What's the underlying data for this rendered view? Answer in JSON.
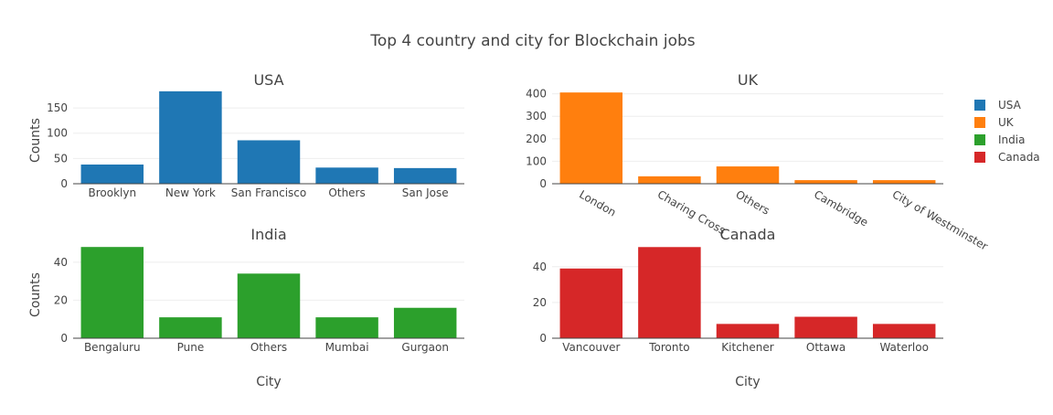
{
  "title": "Top 4 country and city for Blockchain jobs",
  "colors": {
    "USA": "#1f77b4",
    "UK": "#ff7f0e",
    "India": "#2ca02c",
    "Canada": "#d62728"
  },
  "legend": {
    "placement": "top-right",
    "items": [
      {
        "label": "USA",
        "color": "#1f77b4"
      },
      {
        "label": "UK",
        "color": "#ff7f0e"
      },
      {
        "label": "India",
        "color": "#2ca02c"
      },
      {
        "label": "Canada",
        "color": "#d62728"
      }
    ]
  },
  "chart_data": [
    {
      "type": "bar",
      "title": "USA",
      "series_name": "USA",
      "categories": [
        "Brooklyn",
        "New York",
        "San Francisco",
        "Others",
        "San Jose"
      ],
      "values": [
        38,
        183,
        86,
        32,
        31
      ],
      "ylabel": "Counts",
      "xlabel": "",
      "ylim": [
        0,
        190
      ],
      "yticks": [
        0,
        50,
        100,
        150
      ],
      "grid": true,
      "xtick_angle": 0
    },
    {
      "type": "bar",
      "title": "UK",
      "series_name": "UK",
      "categories": [
        "London",
        "Charing Cross",
        "Others",
        "Cambridge",
        "City of Westminster"
      ],
      "values": [
        406,
        33,
        77,
        16,
        16
      ],
      "ylabel": "",
      "xlabel": "",
      "ylim": [
        0,
        427
      ],
      "yticks": [
        0,
        100,
        200,
        300,
        400
      ],
      "grid": true,
      "xtick_angle": 30
    },
    {
      "type": "bar",
      "title": "India",
      "series_name": "India",
      "categories": [
        "Bengaluru",
        "Pune",
        "Others",
        "Mumbai",
        "Gurgaon"
      ],
      "values": [
        48,
        11,
        34,
        11,
        16
      ],
      "ylabel": "Counts",
      "xlabel": "City",
      "ylim": [
        0,
        50.5
      ],
      "yticks": [
        0,
        20,
        40
      ],
      "grid": true,
      "xtick_angle": 0
    },
    {
      "type": "bar",
      "title": "Canada",
      "series_name": "Canada",
      "categories": [
        "Vancouver",
        "Toronto",
        "Kitchener",
        "Ottawa",
        "Waterloo"
      ],
      "values": [
        39,
        51,
        8,
        12,
        8
      ],
      "ylabel": "",
      "xlabel": "City",
      "ylim": [
        0,
        53.7
      ],
      "yticks": [
        0,
        20,
        40
      ],
      "grid": true,
      "xtick_angle": 0
    }
  ]
}
